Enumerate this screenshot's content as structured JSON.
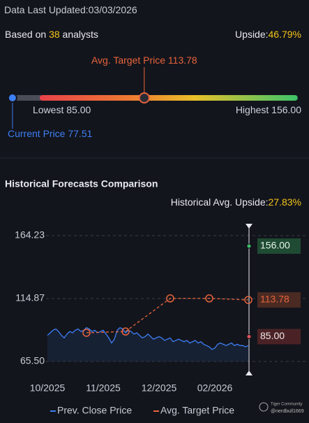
{
  "header": {
    "updated_label": "Data Last Updated:",
    "updated_date": "03/03/2026",
    "based_on": "Based on",
    "analyst_count": "38",
    "analysts": "analysts",
    "upside_label": "Upside:",
    "upside": "46.79%"
  },
  "chart_data": [
    {
      "type": "range",
      "categories": [
        "Current Price",
        "Lowest",
        "Avg. Target Price",
        "Highest"
      ],
      "values": [
        77.51,
        85,
        113.78,
        156
      ],
      "value_labels": [
        "77.51",
        "85.00",
        "113.78",
        "156.00"
      ],
      "colors": [
        "#3d7ff5",
        "#cfd3dc",
        "#e8643c",
        "#cfd3dc"
      ],
      "xlim": [
        76,
        157
      ]
    },
    {
      "type": "line",
      "title": "Historical Forecasts Comparison",
      "subtitle_label": "Historical Avg. Upside:",
      "subtitle_value": "27.83%",
      "categories": [
        "10/2025",
        null,
        null,
        null,
        null,
        null,
        null,
        null,
        null,
        null,
        null,
        null,
        null,
        null,
        null,
        null,
        null,
        null,
        null,
        null,
        "11/2025",
        null,
        null,
        null,
        null,
        null,
        null,
        null,
        null,
        null,
        null,
        null,
        null,
        null,
        null,
        null,
        null,
        null,
        null,
        null,
        "12/2025",
        null,
        null,
        null,
        null,
        null,
        null,
        null,
        null,
        null,
        null,
        null,
        null,
        null,
        null,
        null,
        null,
        null,
        null,
        null,
        "02/2026",
        null,
        null,
        null,
        null,
        null,
        null,
        null,
        null,
        null,
        null,
        null,
        null
      ],
      "series": [
        {
          "name": "Prev. Close Price",
          "color": "#3d7ff5",
          "values": [
            86,
            88,
            90,
            91,
            89,
            86,
            84,
            87,
            89,
            88,
            90,
            91,
            89,
            90,
            92,
            91,
            89,
            90,
            88,
            89,
            90,
            87,
            84,
            80,
            83,
            90,
            92,
            91,
            88,
            90,
            89,
            87,
            88,
            86,
            84,
            85,
            87,
            85,
            83,
            84,
            85,
            84,
            82,
            83,
            84,
            81,
            82,
            83,
            82,
            81,
            82,
            80,
            81,
            82,
            80,
            81,
            79,
            78,
            77,
            75,
            76,
            79,
            80,
            79,
            78,
            79,
            80,
            78,
            79,
            78,
            78,
            77,
            78
          ]
        },
        {
          "name": "Avg. Target Price",
          "color": "#e8643c",
          "x": [
            14,
            28,
            44,
            58,
            72
          ],
          "values": [
            88,
            89,
            115,
            115,
            113.78
          ]
        }
      ],
      "ylim": [
        65.5,
        164.23
      ],
      "yticks": [
        {
          "value": 65.5,
          "label": "65.50"
        },
        114.87,
        164.23
      ],
      "grid": true,
      "annotations": [
        {
          "label": "156.00",
          "value": 156,
          "color": "#1f4a33",
          "text_color": "#e6f5ea",
          "dot": "#3cc36a"
        },
        {
          "label": "113.78",
          "value": 113.78,
          "color": "#4a2a22",
          "text_color": "#e8643c",
          "dot": "#e8643c"
        },
        {
          "label": "85.00",
          "value": 85,
          "color": "#4a2226",
          "text_color": "#f1e6e6",
          "dot": "#e0525a"
        }
      ]
    }
  ],
  "watermark": {
    "brand": "Tiger Community",
    "user": "@nerdbull1669"
  }
}
